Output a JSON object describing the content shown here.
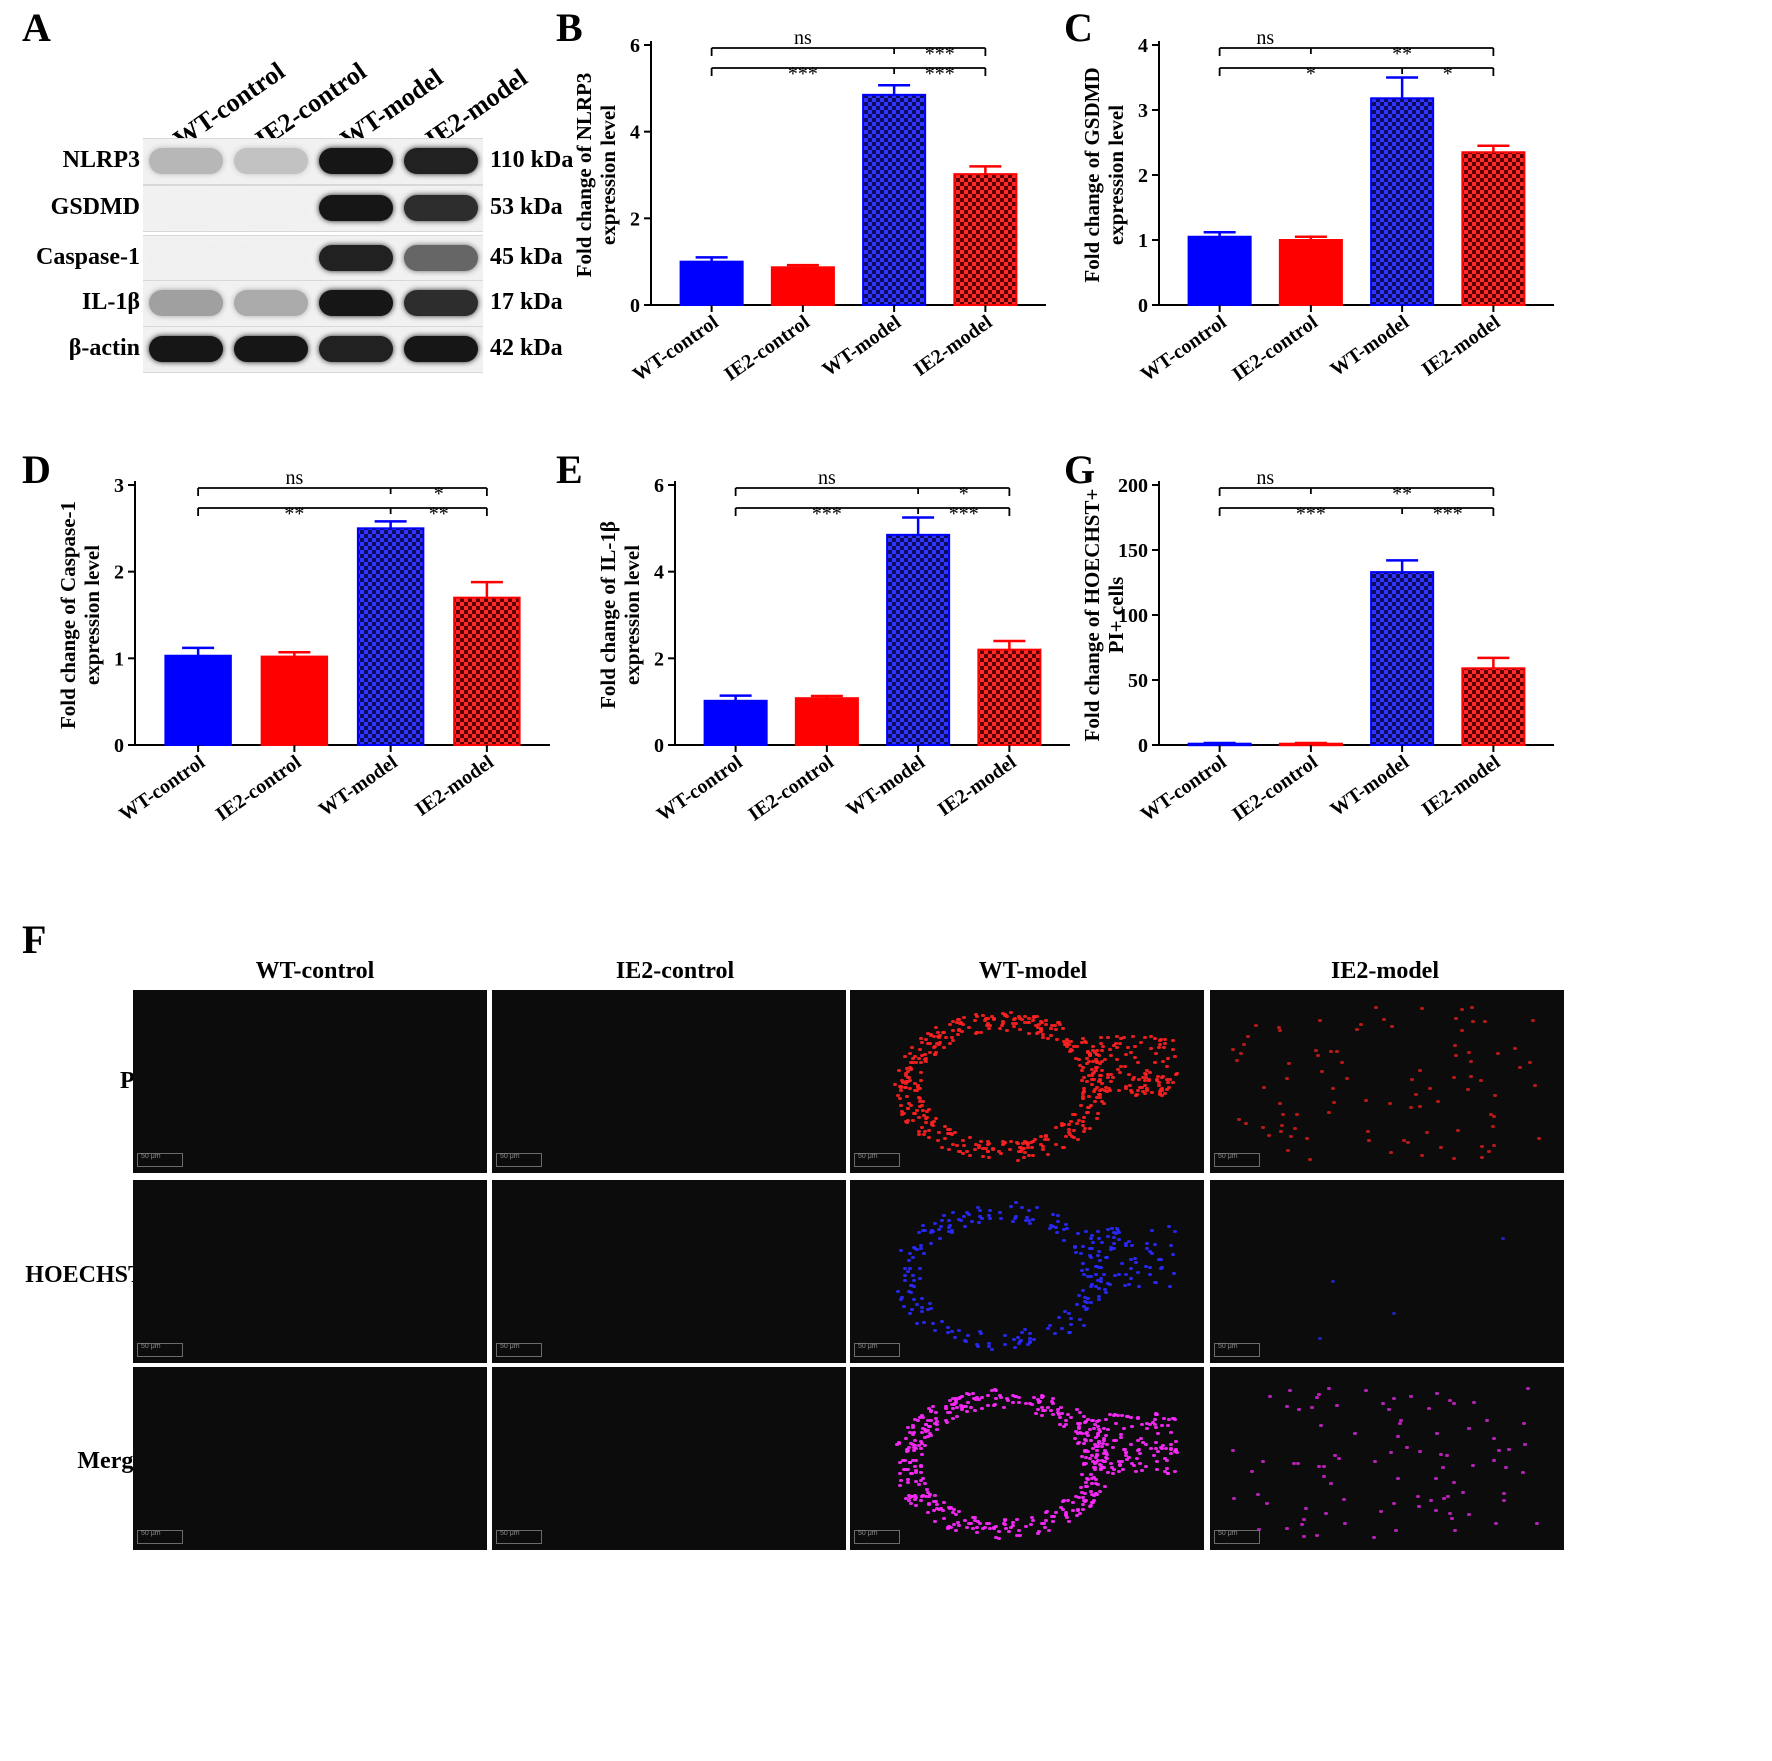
{
  "panel_letters": {
    "A": "A",
    "B": "B",
    "C": "C",
    "D": "D",
    "E": "E",
    "G": "G",
    "F": "F"
  },
  "colors": {
    "wt_control": "#0000ff",
    "ie2_control": "#ff0000",
    "wt_model_fill": "#0d0d5e",
    "wt_model_check": "#3333ff",
    "ie2_model_fill": "#5a0000",
    "ie2_model_check": "#ff2a2a",
    "pi": "#ff2020",
    "hoechst": "#2a2aff",
    "merge": "#ff2aff"
  },
  "western_blot": {
    "groups": [
      "WT-control",
      "IE2-control",
      "WT-model",
      "IE2-model"
    ],
    "proteins": [
      {
        "name": "NLRP3",
        "kda": "110 kDa",
        "intensity": [
          0.25,
          0.2,
          0.95,
          0.9
        ]
      },
      {
        "name": "GSDMD",
        "kda": "53 kDa",
        "intensity": [
          0.0,
          0.0,
          0.95,
          0.85
        ]
      },
      {
        "name": "Caspase-1",
        "kda": "45 kDa",
        "intensity": [
          0.0,
          0.0,
          0.9,
          0.6
        ]
      },
      {
        "name": "IL-1β",
        "kda": "17 kDa",
        "intensity": [
          0.35,
          0.3,
          0.95,
          0.85
        ]
      },
      {
        "name": "β-actin",
        "kda": "42 kDa",
        "intensity": [
          0.95,
          0.95,
          0.9,
          0.95
        ]
      }
    ]
  },
  "chart_data": [
    {
      "id": "B",
      "type": "bar",
      "categories": [
        "WT-control",
        "IE2-control",
        "WT-model",
        "IE2-model"
      ],
      "values": [
        1.0,
        0.87,
        4.85,
        3.02
      ],
      "errors": [
        0.1,
        0.05,
        0.22,
        0.18
      ],
      "ylabel": "Fold change of NLRP3\nexpression level",
      "ylim": [
        0,
        6
      ],
      "yticks": [
        0,
        2,
        4,
        6
      ],
      "sig": [
        {
          "a": 0,
          "b": 2,
          "text": "ns",
          "row": 0
        },
        {
          "a": 2,
          "b": 3,
          "text": "***",
          "row": 0
        },
        {
          "a": 0,
          "b": 2,
          "text": "***",
          "row": 1
        },
        {
          "a": 2,
          "b": 3,
          "text": "***",
          "row": 1
        }
      ]
    },
    {
      "id": "C",
      "type": "bar",
      "categories": [
        "WT-control",
        "IE2-control",
        "WT-model",
        "IE2-model"
      ],
      "values": [
        1.05,
        1.0,
        3.18,
        2.35
      ],
      "errors": [
        0.07,
        0.05,
        0.32,
        0.1
      ],
      "ylabel": "Fold change of GSDMD\nexpression level",
      "ylim": [
        0,
        4
      ],
      "yticks": [
        0,
        1,
        2,
        3,
        4
      ],
      "sig": [
        {
          "a": 0,
          "b": 1,
          "text": "ns",
          "row": 0
        },
        {
          "a": 1,
          "b": 3,
          "text": "**",
          "row": 0
        },
        {
          "a": 0,
          "b": 2,
          "text": "*",
          "row": 1
        },
        {
          "a": 2,
          "b": 3,
          "text": "*",
          "row": 1
        }
      ]
    },
    {
      "id": "D",
      "type": "bar",
      "categories": [
        "WT-control",
        "IE2-control",
        "WT-model",
        "IE2-model"
      ],
      "values": [
        1.03,
        1.02,
        2.5,
        1.7
      ],
      "errors": [
        0.09,
        0.05,
        0.08,
        0.18
      ],
      "ylabel": "Fold change of Caspase-1\nexpression level",
      "ylim": [
        0,
        3
      ],
      "yticks": [
        0,
        1,
        2,
        3
      ],
      "sig": [
        {
          "a": 0,
          "b": 2,
          "text": "ns",
          "row": 0
        },
        {
          "a": 2,
          "b": 3,
          "text": "*",
          "row": 0
        },
        {
          "a": 0,
          "b": 2,
          "text": "**",
          "row": 1
        },
        {
          "a": 2,
          "b": 3,
          "text": "**",
          "row": 1
        }
      ]
    },
    {
      "id": "E",
      "type": "bar",
      "categories": [
        "WT-control",
        "IE2-control",
        "WT-model",
        "IE2-model"
      ],
      "values": [
        1.02,
        1.08,
        4.85,
        2.2
      ],
      "errors": [
        0.12,
        0.05,
        0.4,
        0.2
      ],
      "ylabel": "Fold change of IL-1β\nexpression level",
      "ylim": [
        0,
        6
      ],
      "yticks": [
        0,
        2,
        4,
        6
      ],
      "sig": [
        {
          "a": 0,
          "b": 2,
          "text": "ns",
          "row": 0
        },
        {
          "a": 2,
          "b": 3,
          "text": "*",
          "row": 0
        },
        {
          "a": 0,
          "b": 2,
          "text": "***",
          "row": 1
        },
        {
          "a": 2,
          "b": 3,
          "text": "***",
          "row": 1
        }
      ]
    },
    {
      "id": "G",
      "type": "bar",
      "categories": [
        "WT-control",
        "IE2-control",
        "WT-model",
        "IE2-model"
      ],
      "values": [
        1,
        1,
        133,
        59
      ],
      "errors": [
        0.5,
        0.5,
        9,
        8
      ],
      "ylabel": "Fold change of HOECHST+\nPI+ cells",
      "ylim": [
        0,
        200
      ],
      "yticks": [
        0,
        50,
        100,
        150,
        200
      ],
      "sig": [
        {
          "a": 0,
          "b": 1,
          "text": "ns",
          "row": 0
        },
        {
          "a": 1,
          "b": 3,
          "text": "**",
          "row": 0
        },
        {
          "a": 0,
          "b": 2,
          "text": "***",
          "row": 1
        },
        {
          "a": 2,
          "b": 3,
          "text": "***",
          "row": 1
        }
      ]
    }
  ],
  "microscopy": {
    "columns": [
      "WT-control",
      "IE2-control",
      "WT-model",
      "IE2-model"
    ],
    "rows": [
      "PI",
      "HOECHST",
      "Merge"
    ],
    "scale_bar": "50 μm"
  }
}
